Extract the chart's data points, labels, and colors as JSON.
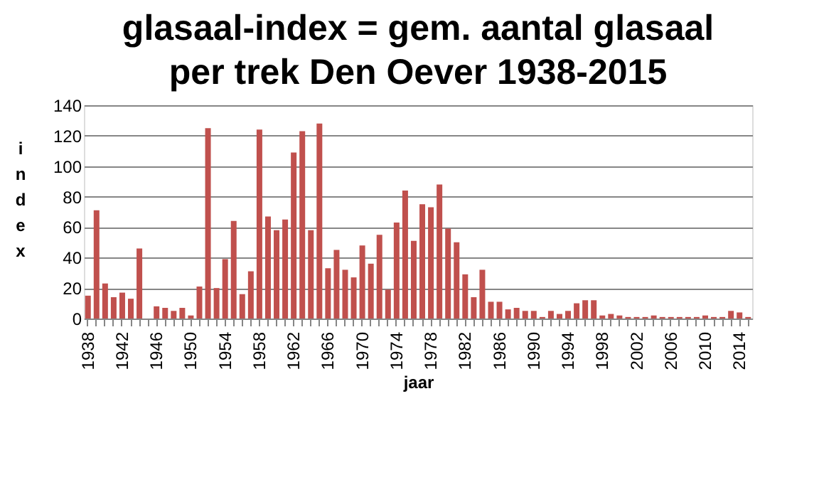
{
  "chart_data": {
    "type": "bar",
    "title": "glasaal-index = gem. aantal glasaal\nper trek Den Oever 1938-2015",
    "xlabel": "jaar",
    "ylabel": "index",
    "categories": [
      "1938",
      null,
      null,
      null,
      "1942",
      null,
      null,
      null,
      "1946",
      null,
      null,
      null,
      "1950",
      null,
      null,
      null,
      "1954",
      null,
      null,
      null,
      "1958",
      null,
      null,
      null,
      "1962",
      null,
      null,
      null,
      "1966",
      null,
      null,
      null,
      "1970",
      null,
      null,
      null,
      "1974",
      null,
      null,
      null,
      "1978",
      null,
      null,
      null,
      "1982",
      null,
      null,
      null,
      "1986",
      null,
      null,
      null,
      "1990",
      null,
      null,
      null,
      "1994",
      null,
      null,
      null,
      "1998",
      null,
      null,
      null,
      "2002",
      null,
      null,
      null,
      "2006",
      null,
      null,
      null,
      "2010",
      null,
      null,
      null,
      "2014",
      null
    ],
    "values": [
      15,
      71,
      23,
      14,
      17,
      13,
      46,
      0,
      8,
      7,
      5,
      7,
      2,
      21,
      125,
      20,
      39,
      64,
      16,
      31,
      124,
      67,
      58,
      65,
      109,
      123,
      58,
      128,
      33,
      45,
      32,
      27,
      48,
      36,
      55,
      19,
      63,
      84,
      51,
      75,
      73,
      88,
      59,
      50,
      29,
      14,
      32,
      11,
      11,
      6,
      7,
      5,
      5,
      1,
      5,
      3,
      5,
      10,
      12,
      12,
      2,
      3,
      2,
      1,
      1,
      1,
      2,
      1,
      1,
      1,
      1,
      1,
      2,
      1,
      1,
      5,
      4,
      1
    ],
    "color": "#c0504d",
    "ylim": [
      0,
      140
    ],
    "yticks": [
      0,
      20,
      40,
      60,
      80,
      100,
      120,
      140
    ],
    "grid": "y"
  }
}
